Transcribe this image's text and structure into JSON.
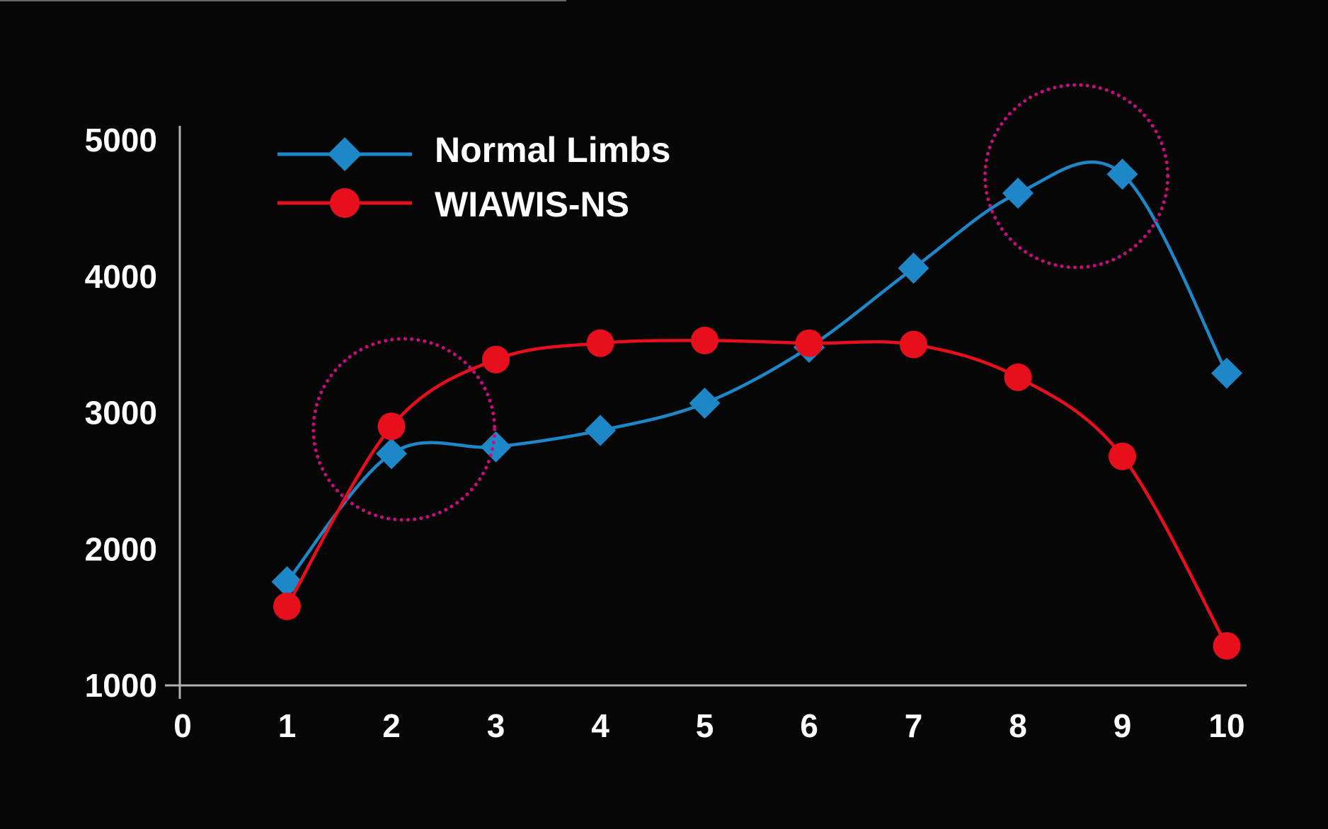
{
  "colors": {
    "background": "#060606",
    "blue": "#1e87c8",
    "red": "#e70f1b",
    "magenta": "#c60d7d",
    "axis": "#b0b0b0",
    "text": "#ffffff"
  },
  "legend": {
    "items": [
      {
        "label": "Normal Limbs",
        "marker": "diamond",
        "color": "#1e87c8"
      },
      {
        "label": "WIAWIS-NS",
        "marker": "circle",
        "color": "#e70f1b"
      }
    ]
  },
  "chart_data": {
    "type": "line",
    "title": "",
    "xlabel": "",
    "ylabel": "",
    "grid": false,
    "legend_position": "top-left",
    "xlim": [
      0,
      10
    ],
    "ylim": [
      1000,
      5000
    ],
    "x": [
      1,
      2,
      3,
      4,
      5,
      6,
      7,
      8,
      9,
      10
    ],
    "x_ticks": [
      0,
      1,
      2,
      3,
      4,
      5,
      6,
      7,
      8,
      9,
      10
    ],
    "x_tick_labels": [
      "0",
      "1",
      "2",
      "3",
      "4",
      "5",
      "6",
      "7",
      "8",
      "9",
      "10"
    ],
    "y_ticks": [
      5000,
      4000,
      3000,
      2000,
      1000
    ],
    "y_tick_labels": [
      "5000",
      "4000",
      "3000",
      "2000",
      "1000"
    ],
    "series": [
      {
        "name": "Normal Limbs",
        "color": "#1e87c8",
        "marker": "diamond",
        "values": [
          1760,
          2700,
          2750,
          2870,
          3070,
          3480,
          4060,
          4610,
          4750,
          3290
        ]
      },
      {
        "name": "WIAWIS-NS",
        "color": "#e70f1b",
        "marker": "circle",
        "values": [
          1580,
          2900,
          3390,
          3510,
          3530,
          3510,
          3500,
          3260,
          2680,
          1290
        ]
      }
    ],
    "annotations": [
      {
        "type": "dotted-circle",
        "x": 2.12,
        "value": 2878,
        "radius_px": 128
      },
      {
        "type": "dotted-circle",
        "x": 8.56,
        "value": 4735,
        "radius_px": 129
      }
    ]
  }
}
